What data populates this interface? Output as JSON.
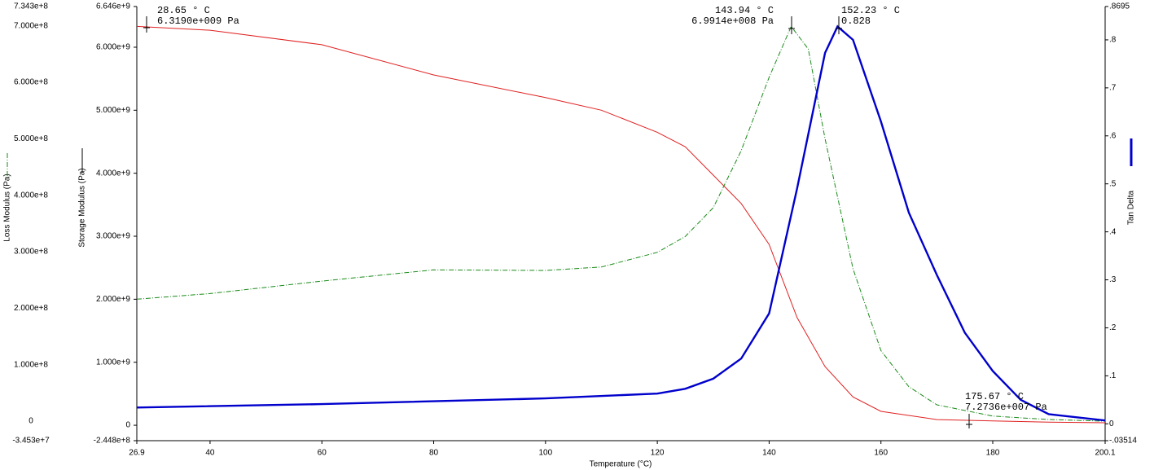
{
  "chart_data": {
    "type": "line",
    "x_label": "Temperature (°C)",
    "xlim": [
      26.9,
      200.1
    ],
    "xticks": [
      26.9,
      40,
      60,
      80,
      100,
      120,
      140,
      160,
      180,
      200.1
    ],
    "ylim": [
      -244800000,
      6646000000
    ],
    "yticks": [
      {
        "value": 6646000000,
        "label": "6.646e+9"
      },
      {
        "value": 6000000000,
        "label": "6.000e+9"
      },
      {
        "value": 5000000000,
        "label": "5.000e+9"
      },
      {
        "value": 4000000000,
        "label": "4.000e+9"
      },
      {
        "value": 3000000000,
        "label": "3.000e+9"
      },
      {
        "value": 2000000000,
        "label": "2.000e+9"
      },
      {
        "value": 1000000000,
        "label": "1.000e+9"
      },
      0,
      {
        "value": -244800000,
        "label": "-2.448e+8"
      }
    ],
    "y2lim": [
      -0.03514,
      0.8695
    ],
    "y2ticks": [
      {
        "value": 0.8695,
        "label": ".8695"
      },
      {
        "value": 0.8,
        "label": ".8"
      },
      {
        "value": 0.7,
        "label": ".7"
      },
      {
        "value": 0.6,
        "label": ".6"
      },
      {
        "value": 0.5,
        "label": ".5"
      },
      {
        "value": 0.4,
        "label": ".4"
      },
      {
        "value": 0.3,
        "label": ".3"
      },
      {
        "value": 0.2,
        "label": ".2"
      },
      {
        "value": 0.1,
        "label": ".1"
      },
      0,
      {
        "value": -0.03514,
        "label": "-.03514"
      }
    ],
    "y3lim": [
      -34530000,
      734300000
    ],
    "y3ticks": [
      {
        "value": 734300000,
        "label": "7.343e+8"
      },
      {
        "value": 700000000,
        "label": "7.000e+8"
      },
      {
        "value": 600000000,
        "label": "6.000e+8"
      },
      {
        "value": 500000000,
        "label": "5.000e+8"
      },
      {
        "value": 400000000,
        "label": "4.000e+8"
      },
      {
        "value": 300000000,
        "label": "3.000e+8"
      },
      {
        "value": 200000000,
        "label": "2.000e+8"
      },
      {
        "value": 100000000,
        "label": "1.000e+8"
      },
      0,
      {
        "value": -34530000,
        "label": "-3.453e+7"
      }
    ],
    "series": [
      {
        "name": "Storage Modulus (Pa)",
        "color": "#e02020",
        "axis": "y",
        "x": [
          26.9,
          40,
          60,
          80,
          100,
          110,
          120,
          125,
          130,
          135,
          140,
          145,
          150,
          155,
          160,
          170,
          180,
          190,
          200.1
        ],
        "values": [
          6330000000,
          6270000000,
          6040000000,
          5560000000,
          5200000000,
          5000000000,
          4650000000,
          4420000000,
          3970000000,
          3520000000,
          2870000000,
          1710000000,
          930000000,
          450000000,
          220000000,
          90000000,
          70000000,
          50000000,
          40000000
        ]
      },
      {
        "name": "Loss Modulus (Pa)",
        "color": "#1a8a1a",
        "axis": "y3",
        "x": [
          26.9,
          40,
          60,
          80,
          100,
          110,
          120,
          125,
          130,
          135,
          140,
          143.94,
          147,
          150,
          155,
          160,
          165,
          170,
          180,
          190,
          200.1
        ],
        "values": [
          216000000,
          226000000,
          248000000,
          268000000,
          267000000,
          273000000,
          299000000,
          327000000,
          378000000,
          479000000,
          609000000,
          699000000,
          659000000,
          500000000,
          270000000,
          125000000,
          61000000,
          29000000,
          9000000,
          3000000,
          0
        ]
      },
      {
        "name": "Tan Delta",
        "color": "#0000cc",
        "axis": "y2",
        "x": [
          26.9,
          60,
          100,
          120,
          125,
          130,
          135,
          140,
          145,
          150,
          152.23,
          155,
          160,
          165,
          170,
          175,
          180,
          185,
          190,
          200.1
        ],
        "values": [
          0.034,
          0.041,
          0.053,
          0.063,
          0.073,
          0.094,
          0.136,
          0.23,
          0.49,
          0.773,
          0.828,
          0.8,
          0.63,
          0.44,
          0.31,
          0.19,
          0.11,
          0.05,
          0.02,
          0.007
        ]
      }
    ],
    "annotations": [
      {
        "lines": [
          "28.65 ° C",
          "6.3190e+009 Pa"
        ]
      },
      {
        "lines": [
          "143.94 ° C",
          "6.9914e+008 Pa"
        ]
      },
      {
        "lines": [
          "152.23 ° C",
          "0.828"
        ]
      },
      {
        "lines": [
          "175.67 ° C",
          "7.2736e+007 Pa"
        ]
      }
    ]
  }
}
